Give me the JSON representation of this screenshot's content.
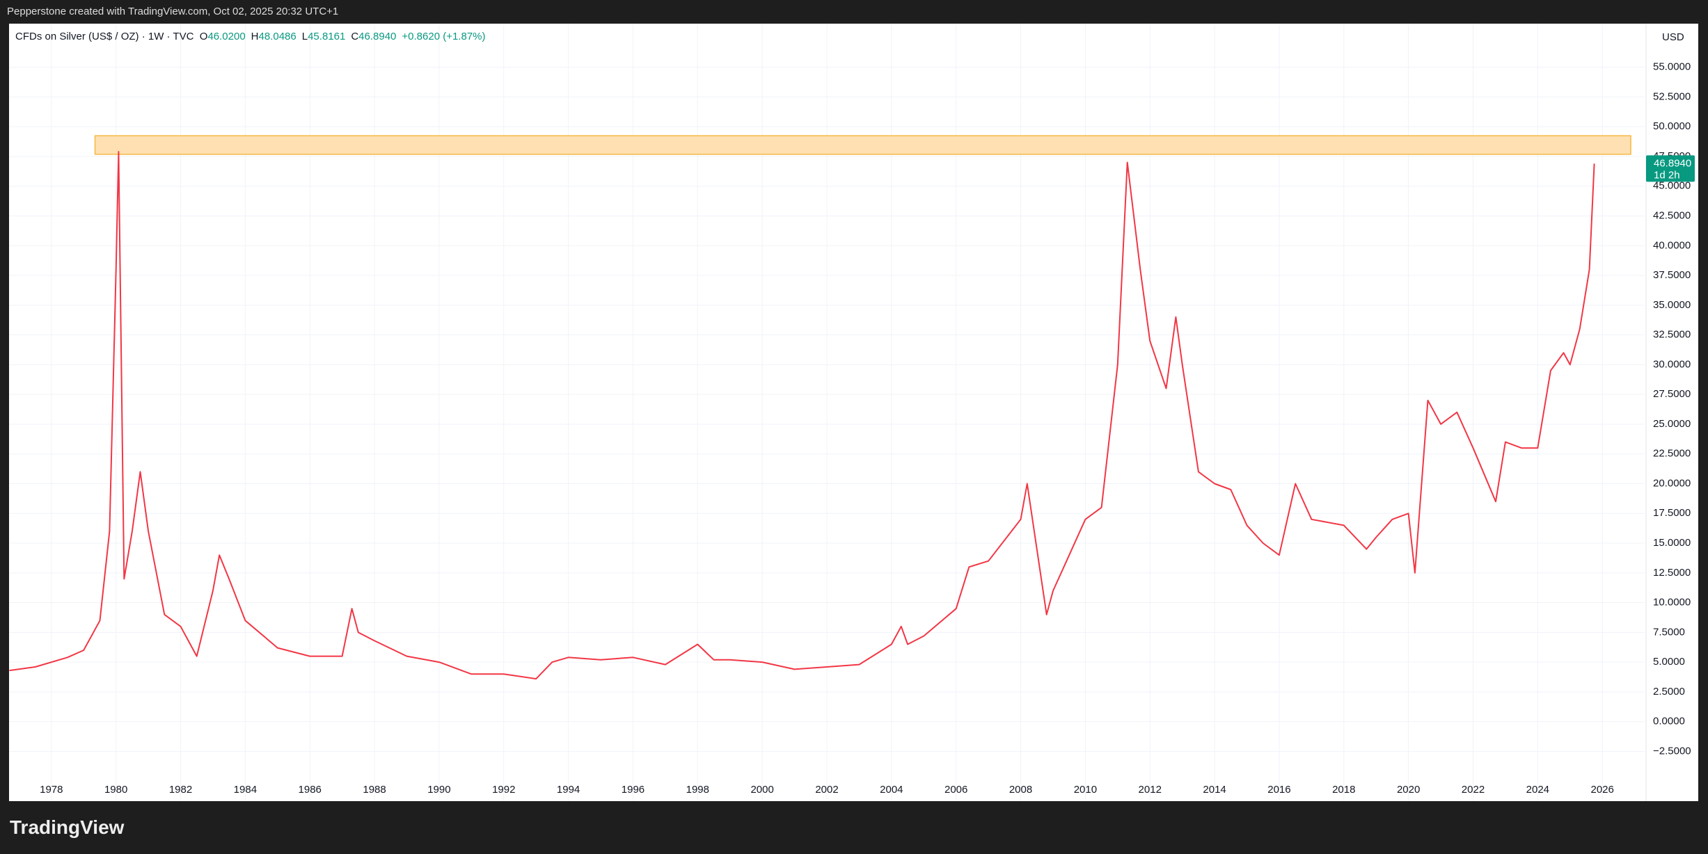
{
  "header": "Pepperstone created with TradingView.com, Oct 02, 2025 20:32 UTC+1",
  "footer_logo": "TradingView",
  "chart_data": {
    "type": "line",
    "symbol": "CFDs on Silver (US$ / OZ) · 1W · TVC",
    "ohlc": [
      {
        "label": "O",
        "value": "46.0200"
      },
      {
        "label": "H",
        "value": "48.0486"
      },
      {
        "label": "L",
        "value": "45.8161"
      },
      {
        "label": "C",
        "value": "46.8940"
      }
    ],
    "change": "+0.8620 (+1.87%)",
    "currency": "USD",
    "last_price": {
      "value": 46.894,
      "label": "46.8940",
      "countdown": "1d 2h",
      "color": "#089981"
    },
    "zone": {
      "x": [
        1979.35,
        2026.88
      ],
      "y": [
        47.68,
        49.24
      ],
      "color": "#ffe0b2",
      "border": "#f5b942"
    },
    "x": [
      1976.7,
      1977.5,
      1978.5,
      1979.0,
      1979.5,
      1979.8,
      1980.0,
      1980.08,
      1980.25,
      1980.5,
      1980.75,
      1981.0,
      1981.5,
      1982.0,
      1982.5,
      1983.0,
      1983.2,
      1983.5,
      1984.0,
      1985.0,
      1986.0,
      1987.0,
      1987.3,
      1987.5,
      1988.0,
      1989.0,
      1990.0,
      1991.0,
      1992.0,
      1993.0,
      1993.5,
      1994.0,
      1995.0,
      1996.0,
      1997.0,
      1998.0,
      1998.5,
      1999.0,
      2000.0,
      2001.0,
      2002.0,
      2003.0,
      2004.0,
      2004.3,
      2004.5,
      2005.0,
      2006.0,
      2006.4,
      2007.0,
      2008.0,
      2008.2,
      2008.8,
      2009.0,
      2009.5,
      2010.0,
      2010.5,
      2011.0,
      2011.3,
      2011.7,
      2012.0,
      2012.5,
      2012.8,
      2013.0,
      2013.5,
      2014.0,
      2014.5,
      2015.0,
      2015.5,
      2016.0,
      2016.5,
      2017.0,
      2018.0,
      2018.7,
      2019.0,
      2019.5,
      2020.0,
      2020.2,
      2020.6,
      2021.0,
      2021.5,
      2022.0,
      2022.7,
      2023.0,
      2023.5,
      2024.0,
      2024.4,
      2024.8,
      2025.0,
      2025.3,
      2025.6,
      2025.75
    ],
    "series": [
      {
        "name": "Silver",
        "color": "#f23645",
        "values": [
          4.3,
          4.6,
          5.4,
          6.0,
          8.5,
          16,
          38,
          47.9,
          12,
          16,
          21,
          16,
          9,
          8,
          5.5,
          11,
          14,
          12,
          8.5,
          6.2,
          5.5,
          5.5,
          9.5,
          7.5,
          6.8,
          5.5,
          5.0,
          4.0,
          4.0,
          3.6,
          5,
          5.4,
          5.2,
          5.4,
          4.8,
          6.5,
          5.2,
          5.2,
          5.0,
          4.4,
          4.6,
          4.8,
          6.5,
          8,
          6.5,
          7.2,
          9.5,
          13,
          13.5,
          17,
          20,
          9,
          11,
          14,
          17,
          18,
          30,
          47,
          38,
          32,
          28,
          34,
          30,
          21,
          20,
          19.5,
          16.5,
          15,
          14,
          20,
          17,
          16.5,
          14.5,
          15.5,
          17,
          17.5,
          12.5,
          27,
          25,
          26,
          23,
          18.5,
          23.5,
          23,
          23,
          29.5,
          31,
          30,
          33,
          38,
          46.894
        ]
      }
    ],
    "xlim": [
      1976.69,
      2027.31
    ],
    "ylim": [
      -6.68,
      58.66
    ],
    "xticks": [
      1978,
      1980,
      1982,
      1984,
      1986,
      1988,
      1990,
      1992,
      1994,
      1996,
      1998,
      2000,
      2002,
      2004,
      2006,
      2008,
      2010,
      2012,
      2014,
      2016,
      2018,
      2020,
      2022,
      2024,
      2026
    ],
    "yticks": [
      {
        "value": -2.5,
        "label": "−2.5000"
      },
      {
        "value": 0,
        "label": "0.0000"
      },
      {
        "value": 2.5,
        "label": "2.5000"
      },
      {
        "value": 5,
        "label": "5.0000"
      },
      {
        "value": 7.5,
        "label": "7.5000"
      },
      {
        "value": 10,
        "label": "10.0000"
      },
      {
        "value": 12.5,
        "label": "12.5000"
      },
      {
        "value": 15,
        "label": "15.0000"
      },
      {
        "value": 17.5,
        "label": "17.5000"
      },
      {
        "value": 20,
        "label": "20.0000"
      },
      {
        "value": 22.5,
        "label": "22.5000"
      },
      {
        "value": 25,
        "label": "25.0000"
      },
      {
        "value": 27.5,
        "label": "27.5000"
      },
      {
        "value": 30,
        "label": "30.0000"
      },
      {
        "value": 32.5,
        "label": "32.5000"
      },
      {
        "value": 35,
        "label": "35.0000"
      },
      {
        "value": 37.5,
        "label": "37.5000"
      },
      {
        "value": 40,
        "label": "40.0000"
      },
      {
        "value": 42.5,
        "label": "42.5000"
      },
      {
        "value": 45,
        "label": "45.0000"
      },
      {
        "value": 47.5,
        "label": "47.5000"
      },
      {
        "value": 50,
        "label": "50.0000"
      },
      {
        "value": 52.5,
        "label": "52.5000"
      },
      {
        "value": 55,
        "label": "55.0000"
      }
    ],
    "grid": true
  }
}
